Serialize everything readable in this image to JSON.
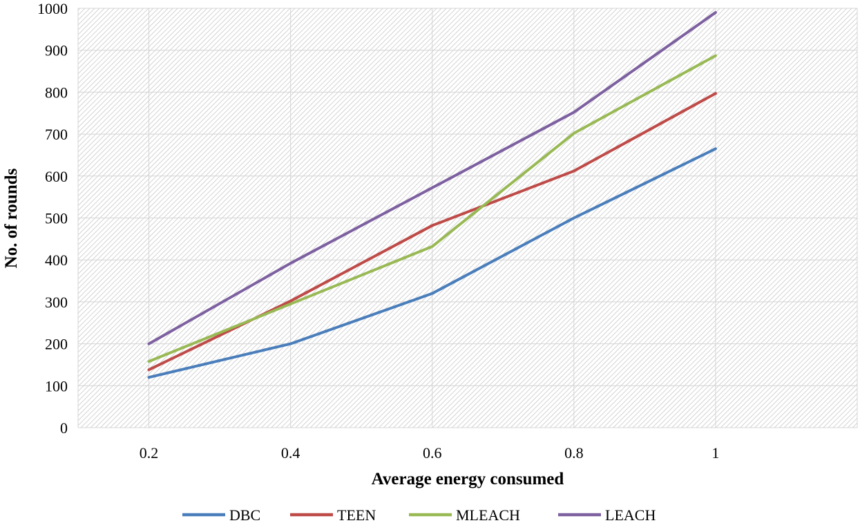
{
  "chart_data": {
    "type": "line",
    "title": "",
    "xlabel": "Average energy consumed",
    "ylabel": "No. of rounds",
    "x": [
      0.2,
      0.4,
      0.6,
      0.8,
      1
    ],
    "x_tick_labels": [
      "0.2",
      "0.4",
      "0.6",
      "0.8",
      "1"
    ],
    "xlim": [
      0.1,
      1.2
    ],
    "ylim": [
      0,
      1000
    ],
    "y_ticks": [
      0,
      100,
      200,
      300,
      400,
      500,
      600,
      700,
      800,
      900,
      1000
    ],
    "grid": true,
    "legend_position": "bottom",
    "series": [
      {
        "name": "DBC",
        "color": "#4A7EBB",
        "values": [
          120,
          200,
          320,
          500,
          665
        ]
      },
      {
        "name": "TEEN",
        "color": "#BE4B48",
        "values": [
          138,
          302,
          482,
          612,
          797
        ]
      },
      {
        "name": "MLEACH",
        "color": "#98B954",
        "values": [
          158,
          295,
          432,
          702,
          887
        ]
      },
      {
        "name": "LEACH",
        "color": "#7D60A0",
        "values": [
          200,
          392,
          572,
          752,
          990
        ]
      }
    ]
  }
}
